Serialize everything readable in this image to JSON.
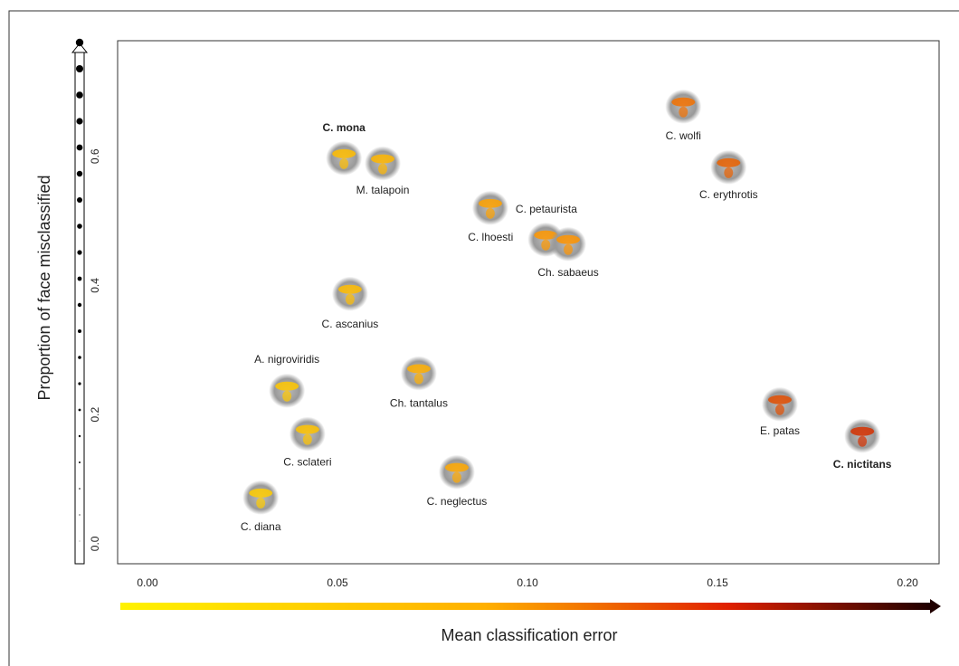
{
  "chart_data": {
    "type": "scatter",
    "x_label": "Mean classification error",
    "y_label": "Proportion of face misclassified",
    "xlim": [
      -0.00786,
      0.2083
    ],
    "ylim": [
      -0.031,
      0.779
    ],
    "xticks": [
      {
        "value": 0,
        "label": "0.00"
      },
      {
        "value": 0.05,
        "label": "0.05"
      },
      {
        "value": 0.1,
        "label": "0.10"
      },
      {
        "value": 0.15,
        "label": "0.15"
      },
      {
        "value": 0.2,
        "label": "0.20"
      }
    ],
    "yticks": [
      {
        "value": 0,
        "label": "0.0"
      },
      {
        "value": 0.2,
        "label": "0.2"
      },
      {
        "value": 0.4,
        "label": "0.4"
      },
      {
        "value": 0.6,
        "label": "0.6"
      }
    ],
    "points": [
      {
        "name": "C. mona",
        "x": 0.0517,
        "y": 0.597,
        "bold": true
      },
      {
        "name": "M. talapoin",
        "x": 0.0619,
        "y": 0.589
      },
      {
        "name": "C. petaurista",
        "x": 0.0902,
        "y": 0.52
      },
      {
        "name": "C. lhoesti",
        "x": 0.1048,
        "y": 0.471
      },
      {
        "name": "Ch. sabaeus",
        "x": 0.1107,
        "y": 0.464
      },
      {
        "name": "C. wolfi",
        "x": 0.141,
        "y": 0.677
      },
      {
        "name": "C. erythrotis",
        "x": 0.1529,
        "y": 0.583
      },
      {
        "name": "C. ascanius",
        "x": 0.0533,
        "y": 0.387
      },
      {
        "name": "A. nigroviridis",
        "x": 0.0367,
        "y": 0.237
      },
      {
        "name": "Ch. tantalus",
        "x": 0.0714,
        "y": 0.264
      },
      {
        "name": "C. sclateri",
        "x": 0.0421,
        "y": 0.17
      },
      {
        "name": "C. neglectus",
        "x": 0.0814,
        "y": 0.111
      },
      {
        "name": "C. diana",
        "x": 0.0298,
        "y": 0.0715
      },
      {
        "name": "E. patas",
        "x": 0.1664,
        "y": 0.216
      },
      {
        "name": "C. nictitans",
        "x": 0.1881,
        "y": 0.167,
        "bold": true
      }
    ]
  }
}
